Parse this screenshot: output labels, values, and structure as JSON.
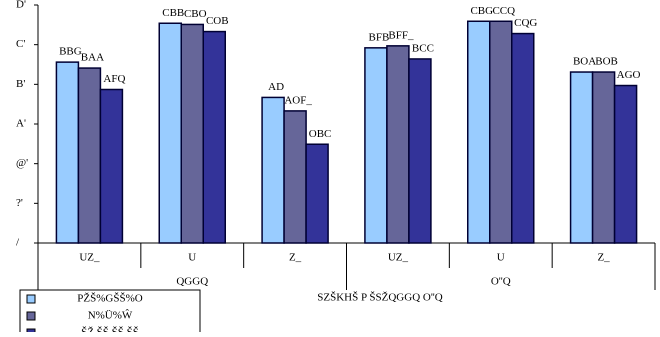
{
  "chart_data": {
    "type": "bar",
    "x_label": "SZŠKHŠ P ŠSŽQGGQ O''Q",
    "categories": [
      "UZ_",
      "U",
      "Z_",
      "UZ_",
      "U",
      "Z_"
    ],
    "groups": [
      "QGGQ",
      "O''Q"
    ],
    "series": [
      {
        "name": "PŽŠ%GŠŠ%O",
        "color": "#99ccff",
        "values": [
          45.6,
          55.4,
          36.7,
          49.2,
          55.9,
          43.1
        ],
        "value_labels": [
          "BBG",
          "CBB",
          "AD",
          "BFB",
          "CBG",
          "BOA"
        ]
      },
      {
        "name": "N%Ü%Ŵ",
        "color": "#666699",
        "values": [
          44.1,
          55.1,
          33.3,
          49.7,
          55.9,
          43.1
        ],
        "value_labels": [
          "BAA",
          "CBO",
          "AOF_",
          "BFF_",
          "CCQ",
          "BOB"
        ]
      },
      {
        "name": "ŠŽ ŠŠ ŠŠ ŠŠ",
        "color": "#333399",
        "values": [
          38.7,
          53.3,
          24.9,
          46.4,
          52.8,
          39.7
        ],
        "value_labels": [
          "AFQ",
          "COB",
          "OBC",
          "BCC",
          "CQG",
          "AGO"
        ]
      }
    ],
    "ylim": [
      0,
      60
    ],
    "yticks": [
      {
        "value": 0,
        "label": "/"
      },
      {
        "value": 10,
        "label": "?'"
      },
      {
        "value": 20,
        "label": "@'"
      },
      {
        "value": 30,
        "label": "A'"
      },
      {
        "value": 40,
        "label": "B'"
      },
      {
        "value": 50,
        "label": "C'"
      },
      {
        "value": 60,
        "label": "D'"
      }
    ],
    "grid": false
  }
}
